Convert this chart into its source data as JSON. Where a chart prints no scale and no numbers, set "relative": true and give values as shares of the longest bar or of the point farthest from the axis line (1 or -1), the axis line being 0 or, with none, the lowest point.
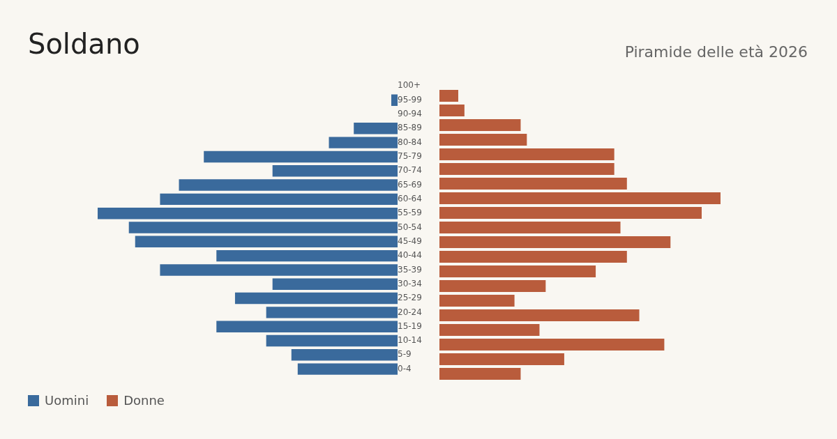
{
  "chart_data": [
    {
      "type": "bar",
      "orientation": "horizontal",
      "relative": true,
      "title": "Soldano",
      "categories": [
        "100+",
        "95-99",
        "90-94",
        "85-89",
        "80-84",
        "75-79",
        "70-74",
        "65-69",
        "60-64",
        "55-59",
        "50-54",
        "45-49",
        "40-44",
        "35-39",
        "30-34",
        "25-29",
        "20-24",
        "15-19",
        "10-14",
        "5-9",
        "0-4"
      ],
      "series": [
        {
          "name": "Uomini",
          "color": "#3a6a9c",
          "values": [
            0,
            -0.021,
            0,
            -0.146,
            -0.229,
            -0.646,
            -0.417,
            -0.729,
            -0.792,
            -1,
            -0.896,
            -0.875,
            -0.604,
            -0.792,
            -0.417,
            -0.542,
            -0.438,
            -0.604,
            -0.438,
            -0.354,
            -0.333
          ]
        }
      ],
      "grid": false,
      "legend": "bottom left"
    },
    {
      "type": "bar",
      "orientation": "horizontal",
      "relative": true,
      "subtitle": "Piramide delle età 2026",
      "categories": [
        null,
        null,
        null,
        null,
        null,
        null,
        null,
        null,
        null,
        null,
        null,
        null,
        null,
        null,
        null,
        null,
        null,
        null,
        null,
        null,
        null
      ],
      "series": [
        {
          "name": "Donne",
          "color": "#b95c3c",
          "values": [
            0,
            0.067,
            0.089,
            0.289,
            0.311,
            0.622,
            0.622,
            0.667,
            1,
            0.933,
            0.644,
            0.822,
            0.667,
            0.556,
            0.378,
            0.267,
            0.711,
            0.356,
            0.8,
            0.444,
            0.289
          ]
        }
      ],
      "grid": false,
      "legend": "bottom left"
    }
  ]
}
